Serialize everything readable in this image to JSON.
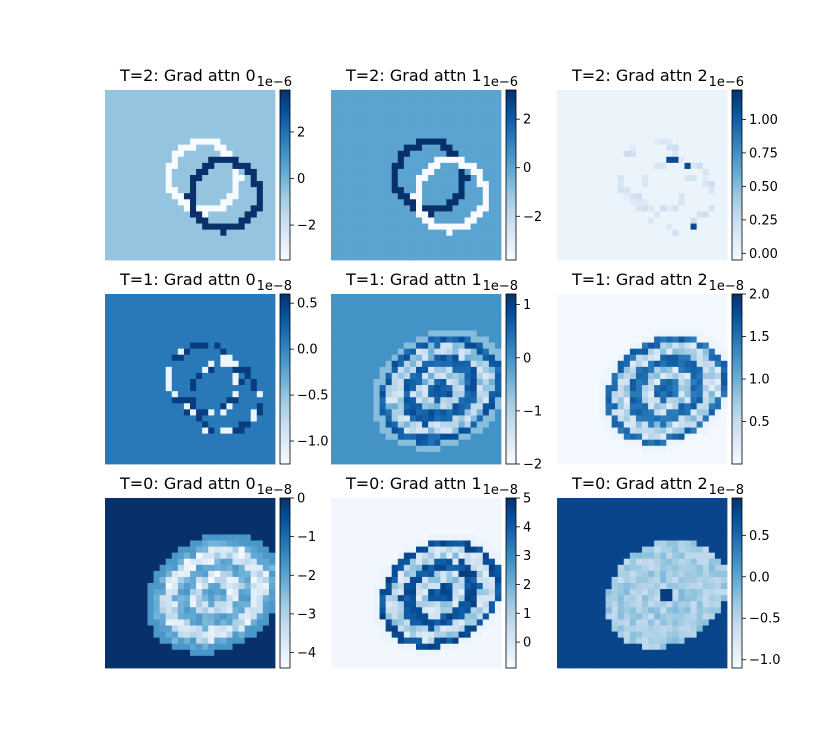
{
  "figure": {
    "background": "#ffffff",
    "colormap": "Blues",
    "cmap_low": "#f7fbff",
    "cmap_high": "#08306b"
  },
  "chart_data": [
    {
      "type": "heatmap",
      "title": "T=2: Grad attn 0",
      "colorbar_offset": "1e−6",
      "colorbar_ticks": [
        "2",
        "0",
        "−2"
      ],
      "tick_values": [
        2,
        0,
        -2
      ],
      "clim": [
        -3.5,
        3.8
      ],
      "background_level": 0.4,
      "ring_style": "pair",
      "ring_levels": [
        0.0,
        1.0
      ]
    },
    {
      "type": "heatmap",
      "title": "T=2: Grad attn 1",
      "colorbar_offset": "1e−6",
      "colorbar_ticks": [
        "2",
        "0",
        "−2"
      ],
      "tick_values": [
        2,
        0,
        -2
      ],
      "clim": [
        -3.8,
        3.2
      ],
      "background_level": 0.55,
      "ring_style": "pair",
      "ring_levels": [
        1.0,
        0.0
      ]
    },
    {
      "type": "heatmap",
      "title": "T=2: Grad attn 2",
      "colorbar_offset": "1e−6",
      "colorbar_ticks": [
        "1.00",
        "0.75",
        "0.50",
        "0.25",
        "0.00"
      ],
      "tick_values": [
        1.0,
        0.75,
        0.5,
        0.25,
        0.0
      ],
      "clim": [
        -0.05,
        1.22
      ],
      "background_level": 0.06,
      "ring_style": "faint",
      "ring_levels": [
        0.12,
        0.9
      ]
    },
    {
      "type": "heatmap",
      "title": "T=1: Grad attn 0",
      "colorbar_offset": "1e−8",
      "colorbar_ticks": [
        "0.5",
        "0.0",
        "−0.5",
        "−1.0"
      ],
      "tick_values": [
        0.5,
        0.0,
        -0.5,
        -1.0
      ],
      "clim": [
        -1.25,
        0.6
      ],
      "background_level": 0.72,
      "ring_style": "dotted",
      "ring_levels": [
        0.05,
        0.95
      ]
    },
    {
      "type": "heatmap",
      "title": "T=1: Grad attn 1",
      "colorbar_offset": "1e−8",
      "colorbar_ticks": [
        "1",
        "0",
        "−1",
        "−2"
      ],
      "tick_values": [
        1,
        0,
        -1,
        -2
      ],
      "clim": [
        -2.0,
        1.2
      ],
      "background_level": 0.62,
      "ring_style": "blob",
      "ring_levels": [
        0.15,
        0.9
      ]
    },
    {
      "type": "heatmap",
      "title": "T=1: Grad attn 2",
      "colorbar_offset": "1e−8",
      "colorbar_ticks": [
        "2.0",
        "1.5",
        "1.0",
        "0.5"
      ],
      "tick_values": [
        2.0,
        1.5,
        1.0,
        0.5
      ],
      "clim": [
        0.0,
        2.0
      ],
      "background_level": 0.02,
      "ring_style": "blob",
      "ring_levels": [
        0.1,
        0.85
      ]
    },
    {
      "type": "heatmap",
      "title": "T=0: Grad attn 0",
      "colorbar_offset": "1e−8",
      "colorbar_ticks": [
        "0",
        "−1",
        "−2",
        "−3",
        "−4"
      ],
      "tick_values": [
        0,
        -1,
        -2,
        -3,
        -4
      ],
      "clim": [
        -4.4,
        0.0
      ],
      "background_level": 1.0,
      "ring_style": "blob",
      "ring_levels": [
        0.0,
        0.6
      ]
    },
    {
      "type": "heatmap",
      "title": "T=0: Grad attn 1",
      "colorbar_offset": "1e−8",
      "colorbar_ticks": [
        "5",
        "4",
        "3",
        "2",
        "1",
        "0"
      ],
      "tick_values": [
        5,
        4,
        3,
        2,
        1,
        0
      ],
      "clim": [
        -0.9,
        5.0
      ],
      "background_level": 0.03,
      "ring_style": "blob",
      "ring_levels": [
        0.1,
        0.95
      ]
    },
    {
      "type": "heatmap",
      "title": "T=0: Grad attn 2",
      "colorbar_offset": "1e−8",
      "colorbar_ticks": [
        "0.5",
        "0.0",
        "−0.5",
        "−1.0"
      ],
      "tick_values": [
        0.5,
        0.0,
        -0.5,
        -1.0
      ],
      "clim": [
        -1.1,
        0.95
      ],
      "background_level": 0.92,
      "ring_style": "soft",
      "ring_levels": [
        0.25,
        0.45
      ]
    }
  ]
}
